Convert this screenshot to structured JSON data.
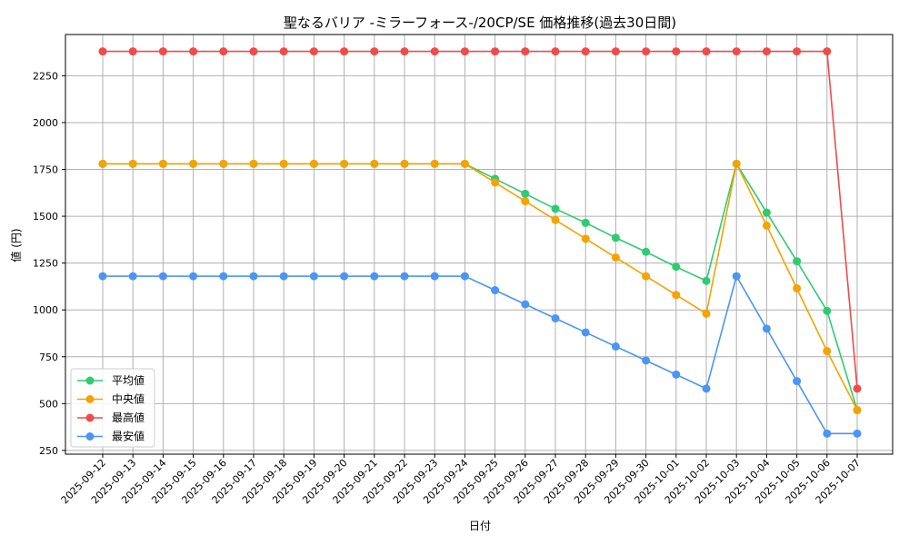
{
  "chart_data": {
    "type": "line",
    "title": "聖なるバリア -ミラーフォース-/20CP/SE 価格推移(過去30日間)",
    "xlabel": "日付",
    "ylabel": "値 (円)",
    "ylim": [
      230,
      2470
    ],
    "yticks": [
      250,
      500,
      750,
      1000,
      1250,
      1500,
      1750,
      2000,
      2250
    ],
    "grid": true,
    "legend_position": "lower-left",
    "categories": [
      "2025-09-12",
      "2025-09-13",
      "2025-09-14",
      "2025-09-15",
      "2025-09-16",
      "2025-09-17",
      "2025-09-18",
      "2025-09-19",
      "2025-09-20",
      "2025-09-21",
      "2025-09-22",
      "2025-09-23",
      "2025-09-24",
      "2025-09-25",
      "2025-09-26",
      "2025-09-27",
      "2025-09-28",
      "2025-09-29",
      "2025-09-30",
      "2025-10-01",
      "2025-10-02",
      "2025-10-03",
      "2025-10-04",
      "2025-10-05",
      "2025-10-06",
      "2025-10-07"
    ],
    "series": [
      {
        "name": "平均値",
        "color": "#2ecc71",
        "values": [
          1780,
          1780,
          1780,
          1780,
          1780,
          1780,
          1780,
          1780,
          1780,
          1780,
          1780,
          1780,
          1780,
          1700,
          1620,
          1540,
          1465,
          1385,
          1310,
          1230,
          1155,
          1780,
          1520,
          1260,
          995,
          465
        ]
      },
      {
        "name": "中央値",
        "color": "#f5a300",
        "values": [
          1780,
          1780,
          1780,
          1780,
          1780,
          1780,
          1780,
          1780,
          1780,
          1780,
          1780,
          1780,
          1780,
          1680,
          1580,
          1480,
          1380,
          1280,
          1180,
          1080,
          980,
          1780,
          1450,
          1115,
          780,
          465
        ]
      },
      {
        "name": "最高値",
        "color": "#ef4b4b",
        "values": [
          2380,
          2380,
          2380,
          2380,
          2380,
          2380,
          2380,
          2380,
          2380,
          2380,
          2380,
          2380,
          2380,
          2380,
          2380,
          2380,
          2380,
          2380,
          2380,
          2380,
          2380,
          2380,
          2380,
          2380,
          2380,
          580
        ]
      },
      {
        "name": "最安値",
        "color": "#4b96f5",
        "values": [
          1180,
          1180,
          1180,
          1180,
          1180,
          1180,
          1180,
          1180,
          1180,
          1180,
          1180,
          1180,
          1180,
          1105,
          1030,
          955,
          880,
          805,
          730,
          655,
          580,
          1180,
          900,
          620,
          340,
          340
        ]
      }
    ]
  }
}
